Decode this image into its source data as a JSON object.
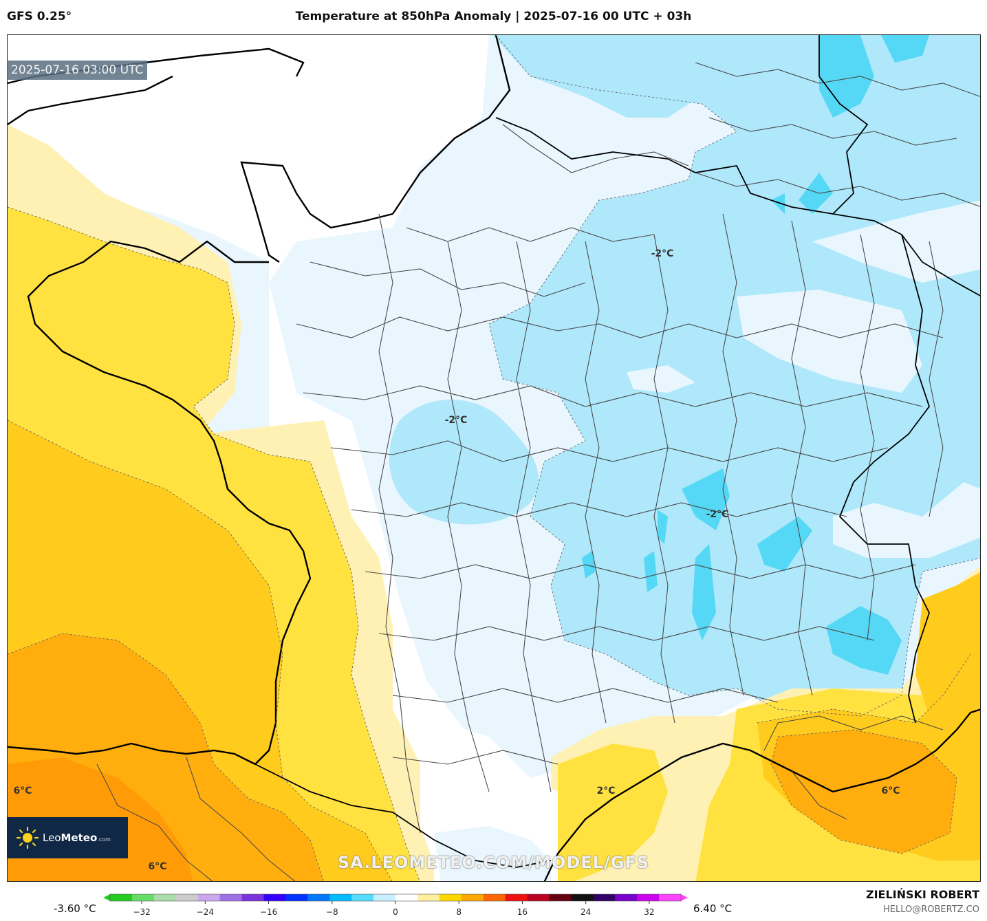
{
  "header": {
    "model": "GFS 0.25°",
    "title": "Temperature at 850hPa Anomaly | 2025-07-16 00 UTC + 03h"
  },
  "map": {
    "valid_time": "2025-07-16 03:00 UTC",
    "contour_labels": [
      "-2°C",
      "-2°C",
      "-2°C",
      "2°C",
      "6°C",
      "6°C",
      "6°C"
    ],
    "watermark": "SA.LEOMETEO.COM/MODEL/GFS",
    "logo": {
      "name_light": "Leo",
      "name_bold": "Meteo",
      "suffix": ".com"
    },
    "colors": {
      "cold_light": "#e9f6fd",
      "cold_mid": "#afe8fb",
      "cold_strong": "#55d8f5",
      "warm_light": "#fff1b4",
      "warm_mid": "#ffe23f",
      "warm_strong": "#ffcb1c",
      "warm_orange": "#ffae0d"
    }
  },
  "colorbar": {
    "min_label": "-3.60 °C",
    "max_label": "6.40 °C",
    "ticks": [
      "−32",
      "−24",
      "−16",
      "−8",
      "0",
      "8",
      "16",
      "24",
      "32"
    ],
    "range": [
      -36,
      36
    ],
    "stops": [
      "#22cc22",
      "#66dd66",
      "#aaddaa",
      "#cccccc",
      "#c9a8ee",
      "#a070e6",
      "#7a33dd",
      "#3300ff",
      "#0033ff",
      "#0077ff",
      "#00bbff",
      "#55ddff",
      "#c9f0ff",
      "#ffffff",
      "#fff0a0",
      "#ffd800",
      "#ffa800",
      "#ff6600",
      "#ee1111",
      "#bb0022",
      "#660011",
      "#111111",
      "#330066",
      "#7700cc",
      "#cc00ee",
      "#ff44ff"
    ]
  },
  "footer": {
    "author": "ZIELIŃSKI ROBERT",
    "email": "HELLO@ROBERTZ.CO"
  }
}
